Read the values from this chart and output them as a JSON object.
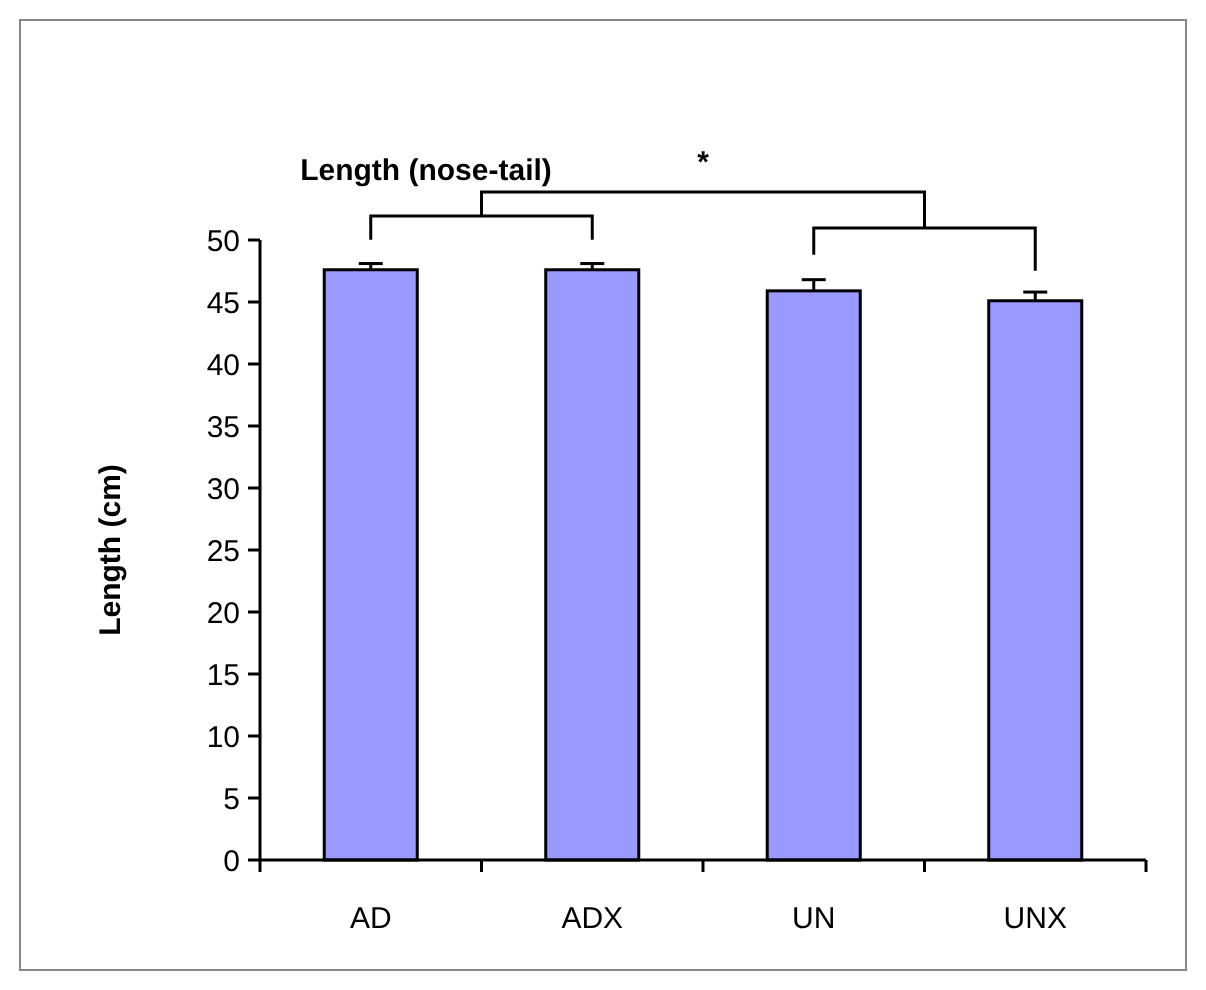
{
  "chart_data": {
    "type": "bar",
    "title": "Length (nose-tail)",
    "ylabel": "Length (cm)",
    "categories": [
      "AD",
      "ADX",
      "UN",
      "UNX"
    ],
    "values": [
      47.6,
      47.6,
      45.9,
      45.1
    ],
    "errors": [
      0.5,
      0.5,
      0.9,
      0.7
    ],
    "color": "#9999ff",
    "ylim": [
      0,
      50
    ],
    "yticks": [
      0,
      5,
      10,
      15,
      20,
      25,
      30,
      35,
      40,
      45,
      50
    ],
    "grid": false,
    "annotations": [
      "*"
    ]
  }
}
